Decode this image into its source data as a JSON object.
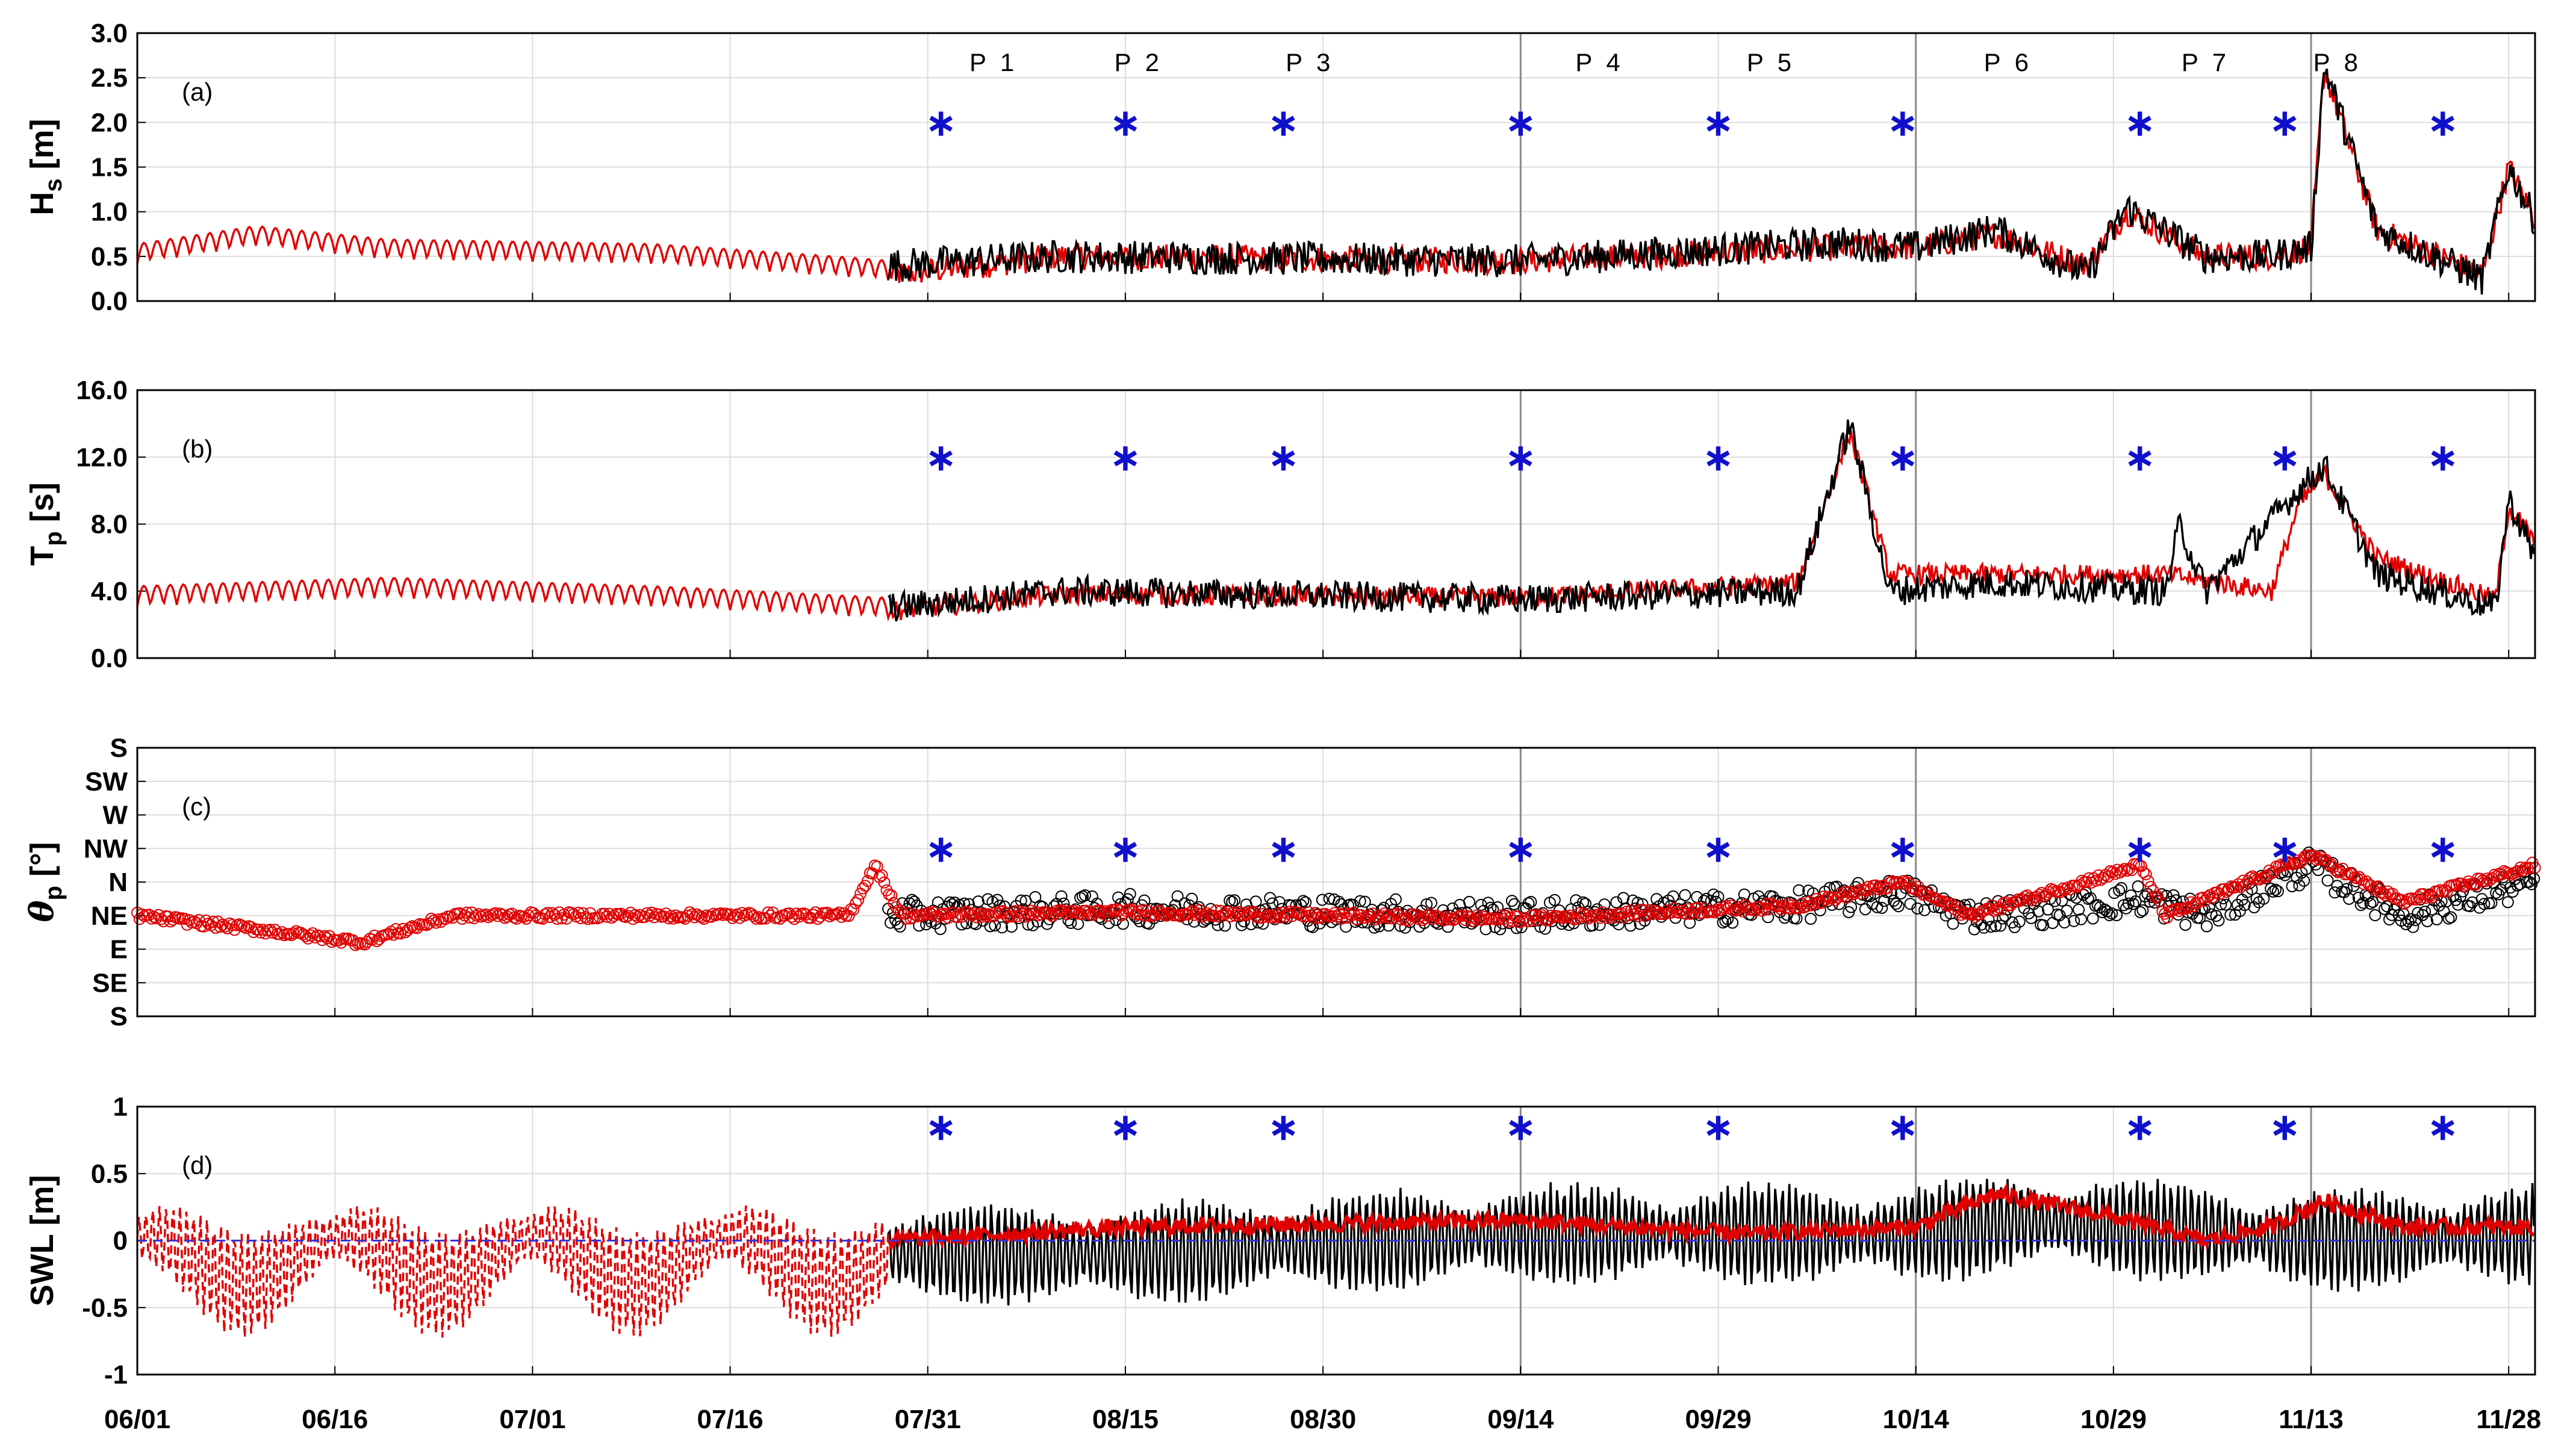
{
  "chart_data": {
    "type": "line",
    "x_axis": {
      "range": [
        "06/01",
        "11/30"
      ],
      "tick_labels": [
        "06/01",
        "06/16",
        "07/01",
        "07/16",
        "07/31",
        "08/15",
        "08/30",
        "09/14",
        "09/29",
        "10/14",
        "10/29",
        "11/13",
        "11/28"
      ]
    },
    "period_labels": [
      {
        "label": "P 1",
        "at": "08/05"
      },
      {
        "label": "P 2",
        "at": "08/16"
      },
      {
        "label": "P 3",
        "at": "08/29"
      },
      {
        "label": "P 4",
        "at": "09/20"
      },
      {
        "label": "P 5",
        "at": "10/03"
      },
      {
        "label": "P 6",
        "at": "10/21"
      },
      {
        "label": "P 7",
        "at": "11/05"
      },
      {
        "label": "P 8",
        "at": "11/15"
      }
    ],
    "survey_dates": [
      "08/01",
      "08/15",
      "08/27",
      "09/14",
      "09/29",
      "10/13",
      "10/31",
      "11/11",
      "11/23"
    ],
    "period_boundaries": [
      "09/14",
      "10/14",
      "11/13"
    ],
    "panels": [
      {
        "id": "a",
        "panel_label": "(a)",
        "ylabel_main": "H",
        "ylabel_sub": "s",
        "ylabel_unit": " [m]",
        "ylim": [
          0,
          3
        ],
        "ytick_labels": [
          "0.0",
          "0.5",
          "1.0",
          "1.5",
          "2.0",
          "2.5",
          "3.0"
        ],
        "star_y": 2.0,
        "series": [
          {
            "color": "#e00000",
            "style": "solid",
            "gen": "hs_model",
            "start": "06/01",
            "end": "11/30",
            "anchors": [
              [
                "06/01",
                0.5
              ],
              [
                "06/10",
                0.7
              ],
              [
                "06/20",
                0.55
              ],
              [
                "07/10",
                0.5
              ],
              [
                "07/25",
                0.35
              ],
              [
                "07/29",
                0.3
              ],
              [
                "08/10",
                0.5
              ],
              [
                "09/14",
                0.45
              ],
              [
                "10/08",
                0.6
              ],
              [
                "10/14",
                0.6
              ],
              [
                "10/20",
                0.75
              ],
              [
                "10/27",
                0.4
              ],
              [
                "10/30",
                1.0
              ],
              [
                "11/05",
                0.5
              ],
              [
                "11/10",
                0.5
              ],
              [
                "11/13",
                0.6
              ],
              [
                "11/14",
                2.6
              ],
              [
                "11/18",
                0.8
              ],
              [
                "11/26",
                0.3
              ],
              [
                "11/28",
                1.5
              ],
              [
                "11/30",
                0.9
              ]
            ]
          },
          {
            "color": "#000000",
            "style": "solid",
            "gen": "hs_obs",
            "start": "07/28",
            "end": "11/30",
            "anchors": [
              [
                "07/28",
                0.4
              ],
              [
                "08/10",
                0.5
              ],
              [
                "09/14",
                0.45
              ],
              [
                "10/08",
                0.65
              ],
              [
                "10/14",
                0.6
              ],
              [
                "10/20",
                0.8
              ],
              [
                "10/27",
                0.3
              ],
              [
                "10/30",
                1.05
              ],
              [
                "11/05",
                0.5
              ],
              [
                "11/10",
                0.5
              ],
              [
                "11/13",
                0.6
              ],
              [
                "11/14",
                2.65
              ],
              [
                "11/18",
                0.8
              ],
              [
                "11/26",
                0.25
              ],
              [
                "11/28",
                1.5
              ],
              [
                "11/30",
                0.9
              ]
            ]
          }
        ]
      },
      {
        "id": "b",
        "panel_label": "(b)",
        "ylabel_main": "T",
        "ylabel_sub": "p",
        "ylabel_unit": " [s]",
        "ylim": [
          0,
          16
        ],
        "ytick_labels": [
          "0.0",
          "4.0",
          "8.0",
          "12.0",
          "16.0"
        ],
        "star_y": 12.0,
        "series": [
          {
            "color": "#e00000",
            "style": "solid",
            "gen": "tp_model",
            "start": "06/01",
            "end": "11/30",
            "anchors": [
              [
                "06/01",
                3.5
              ],
              [
                "06/20",
                4.0
              ],
              [
                "07/10",
                3.5
              ],
              [
                "07/28",
                2.8
              ],
              [
                "08/10",
                3.8
              ],
              [
                "09/14",
                3.6
              ],
              [
                "10/05",
                4.5
              ],
              [
                "10/09",
                13.5
              ],
              [
                "10/12",
                5.0
              ],
              [
                "10/20",
                5.0
              ],
              [
                "11/02",
                5.0
              ],
              [
                "11/10",
                4.0
              ],
              [
                "11/12",
                9.0
              ],
              [
                "11/14",
                11.0
              ],
              [
                "11/18",
                6.0
              ],
              [
                "11/27",
                3.5
              ],
              [
                "11/28",
                9.0
              ],
              [
                "11/30",
                7.0
              ]
            ]
          },
          {
            "color": "#000000",
            "style": "solid",
            "gen": "tp_obs",
            "start": "07/28",
            "end": "11/30",
            "anchors": [
              [
                "07/28",
                3.0
              ],
              [
                "08/10",
                4.0
              ],
              [
                "09/14",
                3.5
              ],
              [
                "10/05",
                4.0
              ],
              [
                "10/09",
                14.0
              ],
              [
                "10/12",
                4.0
              ],
              [
                "10/20",
                4.5
              ],
              [
                "11/02",
                4.0
              ],
              [
                "11/03",
                8.0
              ],
              [
                "11/05",
                4.0
              ],
              [
                "11/12",
                10.0
              ],
              [
                "11/14",
                11.5
              ],
              [
                "11/18",
                5.0
              ],
              [
                "11/27",
                3.0
              ],
              [
                "11/28",
                9.5
              ],
              [
                "11/30",
                6.0
              ]
            ]
          }
        ]
      },
      {
        "id": "c",
        "panel_label": "(c)",
        "ylabel_main": "θ",
        "ylabel_sub": "p",
        "ylabel_unit": " [°]",
        "ylim": [
          0,
          8
        ],
        "ytick_labels": [
          "S",
          "SE",
          "E",
          "NE",
          "N",
          "NW",
          "W",
          "SW",
          "S"
        ],
        "star_y": 5.0,
        "series": [
          {
            "color": "#000000",
            "style": "markers",
            "gen": "dir_obs",
            "start": "07/28",
            "end": "11/30",
            "anchors": [
              [
                "07/28",
                3.0
              ],
              [
                "08/15",
                3.2
              ],
              [
                "09/14",
                3.0
              ],
              [
                "10/05",
                3.3
              ],
              [
                "10/13",
                3.7
              ],
              [
                "10/18",
                3.0
              ],
              [
                "10/25",
                3.2
              ],
              [
                "10/31",
                3.5
              ],
              [
                "11/05",
                3.0
              ],
              [
                "11/13",
                4.5
              ],
              [
                "11/20",
                3.0
              ],
              [
                "11/30",
                4.0
              ]
            ]
          },
          {
            "color": "#e00000",
            "style": "markers",
            "gen": "dir_model",
            "start": "06/01",
            "end": "11/30",
            "anchors": [
              [
                "06/01",
                3.0
              ],
              [
                "06/12",
                2.5
              ],
              [
                "06/18",
                2.2
              ],
              [
                "06/25",
                3.0
              ],
              [
                "07/10",
                3.0
              ],
              [
                "07/25",
                3.0
              ],
              [
                "07/27",
                4.5
              ],
              [
                "07/29",
                3.0
              ],
              [
                "08/15",
                3.1
              ],
              [
                "09/14",
                2.9
              ],
              [
                "10/05",
                3.3
              ],
              [
                "10/13",
                4.0
              ],
              [
                "10/18",
                3.0
              ],
              [
                "10/25",
                3.8
              ],
              [
                "10/31",
                4.5
              ],
              [
                "11/02",
                3.0
              ],
              [
                "11/13",
                4.8
              ],
              [
                "11/20",
                3.4
              ],
              [
                "11/30",
                4.5
              ]
            ]
          }
        ]
      },
      {
        "id": "d",
        "panel_label": "(d)",
        "ylabel_main": "SWL [m]",
        "ylabel_sub": "",
        "ylabel_unit": "",
        "ylim": [
          -1,
          1
        ],
        "ytick_labels": [
          "-1",
          "-0.5",
          "0",
          "0.5",
          "1"
        ],
        "star_y": 0.85,
        "series": [
          {
            "color": "#e00000",
            "style": "dashed",
            "gen": "tide_model",
            "start": "06/01",
            "end": "07/28",
            "anchors": [
              [
                "06/01",
                -0.25
              ],
              [
                "07/28",
                -0.25
              ]
            ]
          },
          {
            "color": "#000000",
            "style": "solid",
            "gen": "tide_obs",
            "start": "07/28",
            "end": "11/30",
            "anchors": [
              [
                "07/28",
                -0.1
              ],
              [
                "08/15",
                -0.1
              ],
              [
                "09/14",
                0.05
              ],
              [
                "10/14",
                0.05
              ],
              [
                "10/22",
                0.15
              ],
              [
                "11/13",
                0.0
              ],
              [
                "11/30",
                0.05
              ]
            ]
          },
          {
            "color": "#e00000",
            "style": "solid",
            "gen": "surge_model",
            "start": "07/28",
            "end": "11/30",
            "anchors": [
              [
                "07/28",
                0.0
              ],
              [
                "08/15",
                0.1
              ],
              [
                "09/14",
                0.15
              ],
              [
                "10/01",
                0.05
              ],
              [
                "10/14",
                0.1
              ],
              [
                "10/20",
                0.35
              ],
              [
                "10/28",
                0.2
              ],
              [
                "11/05",
                0.0
              ],
              [
                "11/10",
                0.1
              ],
              [
                "11/14",
                0.3
              ],
              [
                "11/20",
                0.1
              ],
              [
                "11/30",
                0.1
              ]
            ]
          },
          {
            "color": "#3333dd",
            "style": "dashed",
            "gen": "zero",
            "start": "06/01",
            "end": "11/30",
            "anchors": [
              [
                "06/01",
                0.0
              ],
              [
                "11/30",
                0.0
              ]
            ]
          }
        ]
      }
    ],
    "grid": true
  }
}
